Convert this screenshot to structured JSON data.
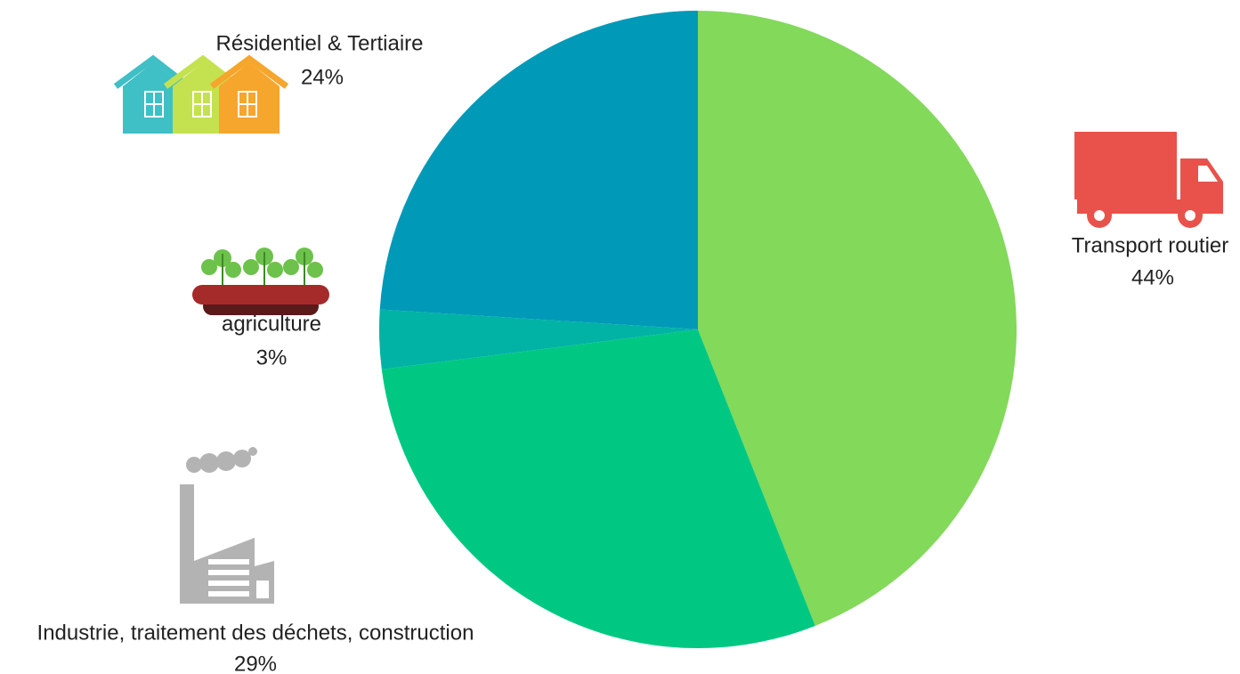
{
  "chart_data": {
    "type": "pie",
    "categories": [
      "Transport routier",
      "Industrie, traitement des déchets, construction",
      "agriculture",
      "Résidentiel & Tertiaire"
    ],
    "values": [
      44,
      29,
      3,
      24
    ],
    "value_labels": [
      "44%",
      "29%",
      "3%",
      "24%"
    ],
    "colors": [
      "#82d95a",
      "#00c882",
      "#00b3a4",
      "#0099b8"
    ]
  }
}
